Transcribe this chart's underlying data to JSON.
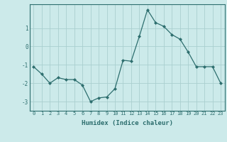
{
  "x": [
    0,
    1,
    2,
    3,
    4,
    5,
    6,
    7,
    8,
    9,
    10,
    11,
    12,
    13,
    14,
    15,
    16,
    17,
    18,
    19,
    20,
    21,
    22,
    23
  ],
  "y": [
    -1.1,
    -1.5,
    -2.0,
    -1.7,
    -1.8,
    -1.8,
    -2.1,
    -3.0,
    -2.8,
    -2.75,
    -2.3,
    -0.75,
    -0.8,
    0.55,
    2.0,
    1.3,
    1.1,
    0.65,
    0.4,
    -0.3,
    -1.1,
    -1.1,
    -1.1,
    -2.0
  ],
  "xlabel": "Humidex (Indice chaleur)",
  "xlim": [
    -0.5,
    23.5
  ],
  "ylim": [
    -3.5,
    2.3
  ],
  "yticks": [
    -3,
    -2,
    -1,
    0,
    1
  ],
  "xticks": [
    0,
    1,
    2,
    3,
    4,
    5,
    6,
    7,
    8,
    9,
    10,
    11,
    12,
    13,
    14,
    15,
    16,
    17,
    18,
    19,
    20,
    21,
    22,
    23
  ],
  "line_color": "#2d6e6e",
  "marker_color": "#2d6e6e",
  "bg_color": "#cceaea",
  "grid_color": "#aacfcf",
  "axis_color": "#2d6e6e",
  "xlabel_fontsize": 6.5,
  "tick_fontsize": 5.0
}
